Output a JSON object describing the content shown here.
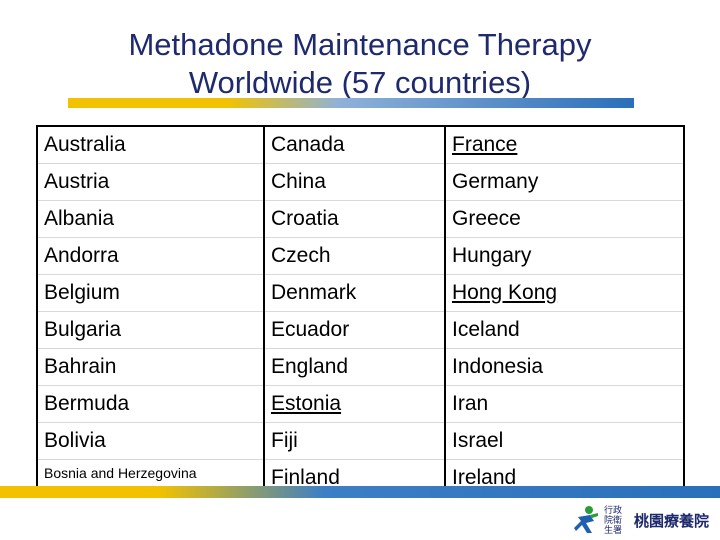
{
  "title": {
    "line1": "Methadone Maintenance Therapy",
    "line2": "Worldwide (57 countries)"
  },
  "table": {
    "rows": [
      [
        "Australia",
        "Canada",
        "France"
      ],
      [
        "Austria",
        "China",
        "Germany"
      ],
      [
        "Albania",
        "Croatia",
        "Greece"
      ],
      [
        "Andorra",
        "Czech",
        "Hungary"
      ],
      [
        "Belgium",
        "Denmark",
        "Hong Kong"
      ],
      [
        "Bulgaria",
        "Ecuador",
        "Iceland"
      ],
      [
        "Bahrain",
        "England",
        "Indonesia"
      ],
      [
        "Bermuda",
        "Estonia",
        "Iran"
      ],
      [
        "Bolivia",
        "Fiji",
        "Israel"
      ],
      [
        "Bosnia and Herzegovina",
        "Finland",
        "Ireland"
      ]
    ]
  },
  "logo": {
    "small_text": "行政院衛生署",
    "name": "桃園療養院"
  },
  "colors": {
    "title": "#1f2a6e",
    "bar_yellow": "#f2c200",
    "bar_blue": "#2a6fba"
  }
}
